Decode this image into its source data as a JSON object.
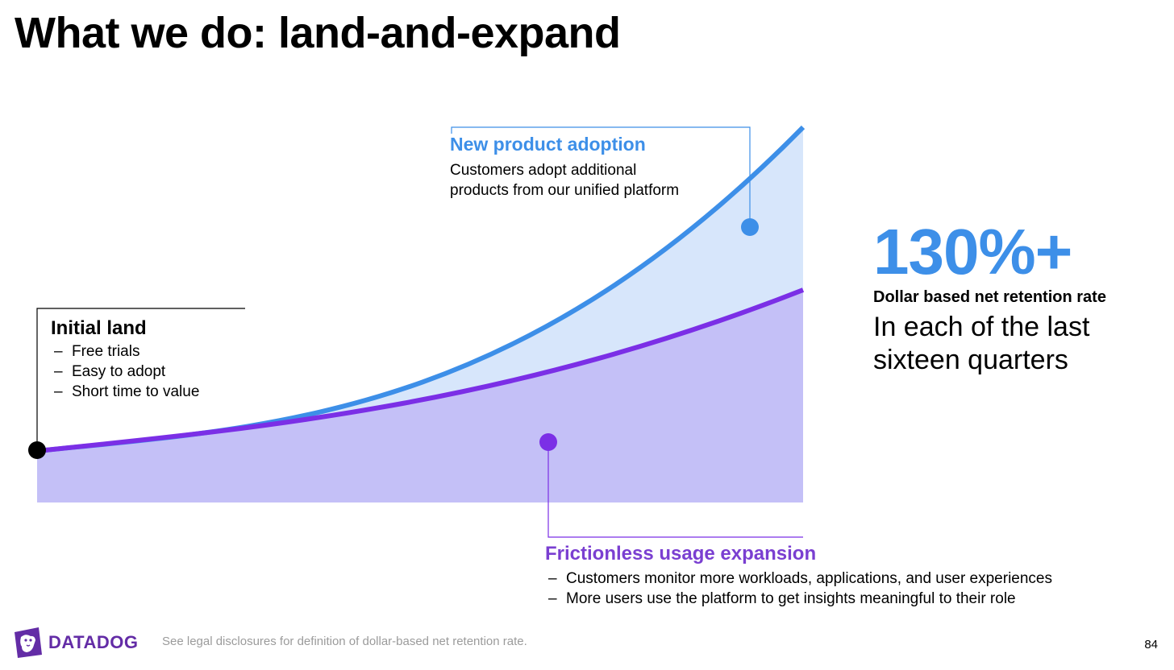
{
  "title": "What we do: land-and-expand",
  "callouts": {
    "new_product": {
      "title": "New product adoption",
      "text_line1": "Customers adopt additional",
      "text_line2": "products from our unified platform"
    },
    "initial_land": {
      "title": "Initial land",
      "items": [
        "Free trials",
        "Easy to adopt",
        "Short time to value"
      ]
    },
    "frictionless": {
      "title": "Frictionless usage expansion",
      "items": [
        "Customers monitor more workloads, applications, and user experiences",
        "More users use the platform to get insights meaningful to their role"
      ]
    }
  },
  "metric": {
    "value": "130%+",
    "label": "Dollar based net retention rate",
    "sub": "In each of the last sixteen quarters"
  },
  "footer": {
    "logo_text": "DATADOG",
    "note": "See legal disclosures for definition of dollar-based net retention rate.",
    "page_number": "84"
  },
  "colors": {
    "blue": "#3d8fe8",
    "light_blue_fill": "#d7e6fb",
    "purple": "#7b2fe6",
    "purple_fill": "#c4c0f7",
    "brand_purple": "#632ca6"
  }
}
